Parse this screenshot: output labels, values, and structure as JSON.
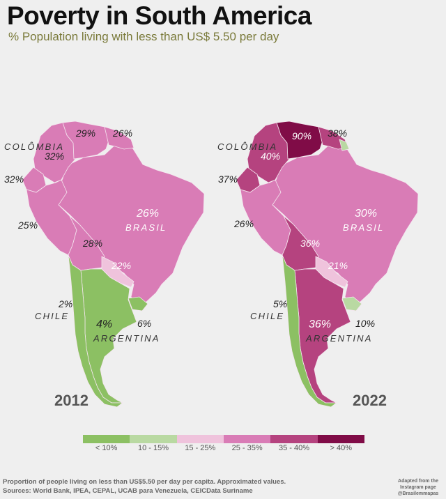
{
  "header": {
    "title": "Poverty in South America",
    "subtitle": "% Population living with less than US$ 5.50 per day"
  },
  "colors": {
    "lt10": "#8cc063",
    "10_15": "#b9d9a2",
    "15_25": "#efc3dc",
    "25_35": "#d97cb6",
    "35_40": "#b5437f",
    "gt40": "#800c47"
  },
  "maps": [
    {
      "year": "2012",
      "labels": {
        "colombia_name": "COLÔMBIA",
        "colombia": "32%",
        "venezuela": "29%",
        "guianas": "26%",
        "ecuador": "32%",
        "peru": "25%",
        "bolivia": "28%",
        "paraguay": "22%",
        "brasil_pct": "26%",
        "brasil_name": "BRASIL",
        "chile_pct": "2%",
        "chile_name": "CHILE",
        "argentina_pct": "4%",
        "uruguay": "6%",
        "argentina_name": "ARGENTINA"
      }
    },
    {
      "year": "2022",
      "labels": {
        "colombia_name": "COLÔMBIA",
        "colombia": "40%",
        "venezuela": "90%",
        "guianas": "38%",
        "ecuador": "37%",
        "peru": "26%",
        "bolivia": "36%",
        "paraguay": "21%",
        "brasil_pct": "30%",
        "brasil_name": "BRASIL",
        "chile_pct": "5%",
        "chile_name": "CHILE",
        "argentina_pct": "36%",
        "uruguay": "10%",
        "argentina_name": "ARGENTINA"
      }
    }
  ],
  "legend": {
    "items": [
      "< 10%",
      "10 - 15%",
      "15 - 25%",
      "25 - 35%",
      "35 - 40%",
      "> 40%"
    ]
  },
  "footer": {
    "line1": "Proportion of people living on less than US$5.50 per day per capita. Approximated values.",
    "line2": "Sources: World Bank, IPEA, CEPAL, UCAB para Venezuela, CEICData Suriname"
  },
  "credit": {
    "line1": "Adapted from the",
    "line2": "Instagram page",
    "line3": "@Brasilemmapas"
  }
}
